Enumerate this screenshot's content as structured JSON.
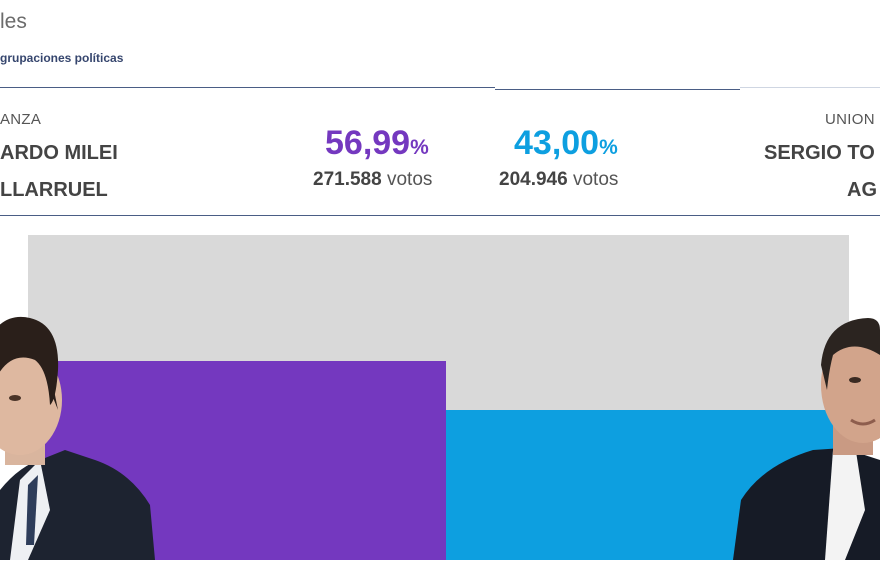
{
  "header": {
    "title": "les",
    "subtitle": "grupaciones políticas"
  },
  "left": {
    "party": "ANZA",
    "candidate_line1": "ARDO MILEI",
    "candidate_line2": "LLARRUEL",
    "percent": "56,99",
    "percent_sign": "%",
    "votes_number": "271.588",
    "votes_label": "votos",
    "color": "#7438bf",
    "bar_fraction": 0.5699
  },
  "right": {
    "party": "UNION",
    "candidate_line1": "SERGIO TO",
    "candidate_line2": "AG",
    "percent": "43,00",
    "percent_sign": "%",
    "votes_number": "204.946",
    "votes_label": "votos",
    "color": "#0d9fe0",
    "bar_fraction": 0.43
  }
}
